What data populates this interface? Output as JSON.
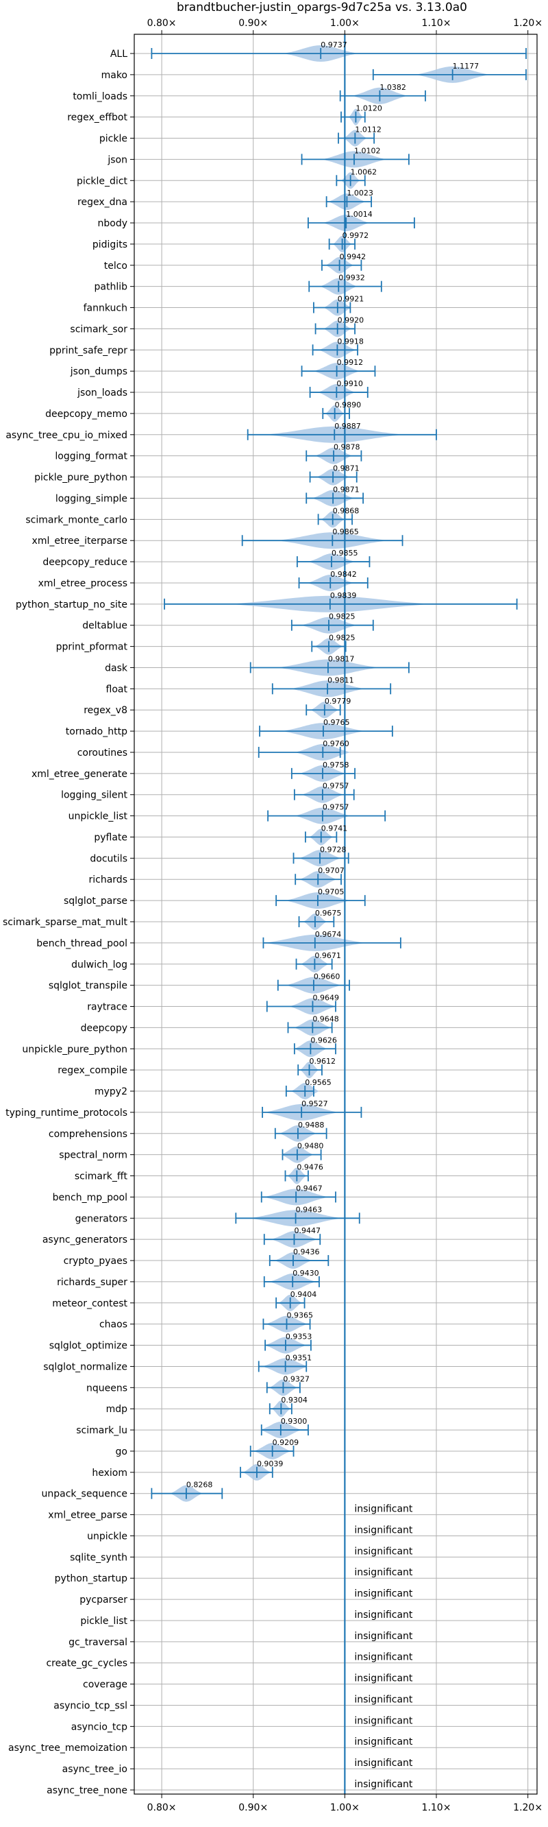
{
  "chart_data": {
    "type": "violin",
    "title": "brandtbucher-justin_opargs-9d7c25a vs. 3.13.0a0",
    "xlabel": "",
    "ylabel": "",
    "xlim": [
      0.77,
      1.21
    ],
    "x_ticks": [
      0.8,
      0.9,
      1.0,
      1.1,
      1.2
    ],
    "x_tick_labels": [
      "0.80×",
      "0.90×",
      "1.00×",
      "1.10×",
      "1.20×"
    ],
    "reference_line": 1.0,
    "grid": true,
    "colors": {
      "violin": "#aac8e6",
      "marker": "#1f77b4",
      "grid": "#b0b0b0"
    },
    "benchmarks": [
      {
        "name": "ALL",
        "label": "0.9737",
        "mean": 0.9737,
        "min": 0.789,
        "max": 1.198,
        "bw": 0.08
      },
      {
        "name": "mako",
        "label": "1.1177",
        "mean": 1.1177,
        "min": 1.031,
        "max": 1.198,
        "bw": 0.08
      },
      {
        "name": "tomli_loads",
        "label": "1.0382",
        "mean": 1.0382,
        "min": 0.995,
        "max": 1.088,
        "bw": 0.06
      },
      {
        "name": "regex_effbot",
        "label": "1.0120",
        "mean": 1.012,
        "min": 0.996,
        "max": 1.022,
        "bw": 0.015
      },
      {
        "name": "pickle",
        "label": "1.0112",
        "mean": 1.0112,
        "min": 0.993,
        "max": 1.032,
        "bw": 0.025
      },
      {
        "name": "json",
        "label": "1.0102",
        "mean": 1.0102,
        "min": 0.953,
        "max": 1.07,
        "bw": 0.07
      },
      {
        "name": "pickle_dict",
        "label": "1.0062",
        "mean": 1.0062,
        "min": 0.991,
        "max": 1.022,
        "bw": 0.02
      },
      {
        "name": "regex_dna",
        "label": "1.0023",
        "mean": 1.0023,
        "min": 0.98,
        "max": 1.029,
        "bw": 0.04
      },
      {
        "name": "nbody",
        "label": "1.0014",
        "mean": 1.0014,
        "min": 0.96,
        "max": 1.076,
        "bw": 0.05
      },
      {
        "name": "pidigits",
        "label": "0.9972",
        "mean": 0.9972,
        "min": 0.983,
        "max": 1.011,
        "bw": 0.02
      },
      {
        "name": "telco",
        "label": "0.9942",
        "mean": 0.9942,
        "min": 0.975,
        "max": 1.018,
        "bw": 0.03
      },
      {
        "name": "pathlib",
        "label": "0.9932",
        "mean": 0.9932,
        "min": 0.961,
        "max": 1.04,
        "bw": 0.04
      },
      {
        "name": "fannkuch",
        "label": "0.9921",
        "mean": 0.9921,
        "min": 0.966,
        "max": 1.006,
        "bw": 0.03
      },
      {
        "name": "scimark_sor",
        "label": "0.9920",
        "mean": 0.992,
        "min": 0.968,
        "max": 1.011,
        "bw": 0.03
      },
      {
        "name": "pprint_safe_repr",
        "label": "0.9918",
        "mean": 0.9918,
        "min": 0.965,
        "max": 1.014,
        "bw": 0.04
      },
      {
        "name": "json_dumps",
        "label": "0.9912",
        "mean": 0.9912,
        "min": 0.953,
        "max": 1.033,
        "bw": 0.05
      },
      {
        "name": "json_loads",
        "label": "0.9910",
        "mean": 0.991,
        "min": 0.962,
        "max": 1.025,
        "bw": 0.04
      },
      {
        "name": "deepcopy_memo",
        "label": "0.9890",
        "mean": 0.989,
        "min": 0.976,
        "max": 1.005,
        "bw": 0.02
      },
      {
        "name": "async_tree_cpu_io_mixed",
        "label": "0.9887",
        "mean": 0.9887,
        "min": 0.894,
        "max": 1.1,
        "bw": 0.15
      },
      {
        "name": "logging_format",
        "label": "0.9878",
        "mean": 0.9878,
        "min": 0.958,
        "max": 1.018,
        "bw": 0.04
      },
      {
        "name": "pickle_pure_python",
        "label": "0.9871",
        "mean": 0.9871,
        "min": 0.962,
        "max": 1.013,
        "bw": 0.035
      },
      {
        "name": "logging_simple",
        "label": "0.9871",
        "mean": 0.9871,
        "min": 0.958,
        "max": 1.02,
        "bw": 0.045
      },
      {
        "name": "scimark_monte_carlo",
        "label": "0.9868",
        "mean": 0.9868,
        "min": 0.971,
        "max": 1.008,
        "bw": 0.025
      },
      {
        "name": "xml_etree_iterparse",
        "label": "0.9865",
        "mean": 0.9865,
        "min": 0.888,
        "max": 1.063,
        "bw": 0.12
      },
      {
        "name": "deepcopy_reduce",
        "label": "0.9855",
        "mean": 0.9855,
        "min": 0.948,
        "max": 1.027,
        "bw": 0.05
      },
      {
        "name": "xml_etree_process",
        "label": "0.9842",
        "mean": 0.9842,
        "min": 0.95,
        "max": 1.025,
        "bw": 0.05
      },
      {
        "name": "python_startup_no_site",
        "label": "0.9839",
        "mean": 0.9839,
        "min": 0.803,
        "max": 1.188,
        "bw": 0.22
      },
      {
        "name": "deltablue",
        "label": "0.9825",
        "mean": 0.9825,
        "min": 0.942,
        "max": 1.031,
        "bw": 0.06
      },
      {
        "name": "pprint_pformat",
        "label": "0.9825",
        "mean": 0.9825,
        "min": 0.964,
        "max": 1.001,
        "bw": 0.03
      },
      {
        "name": "dask",
        "label": "0.9817",
        "mean": 0.9817,
        "min": 0.897,
        "max": 1.07,
        "bw": 0.11
      },
      {
        "name": "float",
        "label": "0.9811",
        "mean": 0.9811,
        "min": 0.921,
        "max": 1.05,
        "bw": 0.08
      },
      {
        "name": "regex_v8",
        "label": "0.9779",
        "mean": 0.9779,
        "min": 0.958,
        "max": 0.995,
        "bw": 0.03
      },
      {
        "name": "tornado_http",
        "label": "0.9765",
        "mean": 0.9765,
        "min": 0.907,
        "max": 1.052,
        "bw": 0.09
      },
      {
        "name": "coroutines",
        "label": "0.9760",
        "mean": 0.976,
        "min": 0.906,
        "max": 0.995,
        "bw": 0.06
      },
      {
        "name": "xml_etree_generate",
        "label": "0.9758",
        "mean": 0.9758,
        "min": 0.942,
        "max": 1.011,
        "bw": 0.05
      },
      {
        "name": "logging_silent",
        "label": "0.9757",
        "mean": 0.9757,
        "min": 0.945,
        "max": 1.01,
        "bw": 0.045
      },
      {
        "name": "unpickle_list",
        "label": "0.9757",
        "mean": 0.9757,
        "min": 0.916,
        "max": 1.044,
        "bw": 0.06
      },
      {
        "name": "pyflate",
        "label": "0.9741",
        "mean": 0.9741,
        "min": 0.957,
        "max": 0.991,
        "bw": 0.025
      },
      {
        "name": "docutils",
        "label": "0.9728",
        "mean": 0.9728,
        "min": 0.944,
        "max": 1.004,
        "bw": 0.045
      },
      {
        "name": "richards",
        "label": "0.9707",
        "mean": 0.9707,
        "min": 0.946,
        "max": 0.996,
        "bw": 0.04
      },
      {
        "name": "sqlglot_parse",
        "label": "0.9705",
        "mean": 0.9705,
        "min": 0.925,
        "max": 1.022,
        "bw": 0.07
      },
      {
        "name": "scimark_sparse_mat_mult",
        "label": "0.9675",
        "mean": 0.9675,
        "min": 0.95,
        "max": 0.988,
        "bw": 0.025
      },
      {
        "name": "bench_thread_pool",
        "label": "0.9674",
        "mean": 0.9674,
        "min": 0.911,
        "max": 1.061,
        "bw": 0.11
      },
      {
        "name": "dulwich_log",
        "label": "0.9671",
        "mean": 0.9671,
        "min": 0.947,
        "max": 0.986,
        "bw": 0.03
      },
      {
        "name": "sqlglot_transpile",
        "label": "0.9660",
        "mean": 0.966,
        "min": 0.927,
        "max": 1.005,
        "bw": 0.06
      },
      {
        "name": "raytrace",
        "label": "0.9649",
        "mean": 0.9649,
        "min": 0.915,
        "max": 0.99,
        "bw": 0.05
      },
      {
        "name": "deepcopy",
        "label": "0.9648",
        "mean": 0.9648,
        "min": 0.938,
        "max": 0.986,
        "bw": 0.04
      },
      {
        "name": "unpickle_pure_python",
        "label": "0.9626",
        "mean": 0.9626,
        "min": 0.945,
        "max": 0.99,
        "bw": 0.035
      },
      {
        "name": "regex_compile",
        "label": "0.9612",
        "mean": 0.9612,
        "min": 0.949,
        "max": 0.975,
        "bw": 0.02
      },
      {
        "name": "mypy2",
        "label": "0.9565",
        "mean": 0.9565,
        "min": 0.936,
        "max": 0.966,
        "bw": 0.03
      },
      {
        "name": "typing_runtime_protocols",
        "label": "0.9527",
        "mean": 0.9527,
        "min": 0.91,
        "max": 1.018,
        "bw": 0.08
      },
      {
        "name": "comprehensions",
        "label": "0.9488",
        "mean": 0.9488,
        "min": 0.924,
        "max": 0.98,
        "bw": 0.04
      },
      {
        "name": "spectral_norm",
        "label": "0.9480",
        "mean": 0.948,
        "min": 0.932,
        "max": 0.974,
        "bw": 0.035
      },
      {
        "name": "scimark_fft",
        "label": "0.9476",
        "mean": 0.9476,
        "min": 0.935,
        "max": 0.96,
        "bw": 0.02
      },
      {
        "name": "bench_mp_pool",
        "label": "0.9467",
        "mean": 0.9467,
        "min": 0.909,
        "max": 0.99,
        "bw": 0.07
      },
      {
        "name": "generators",
        "label": "0.9463",
        "mean": 0.9463,
        "min": 0.881,
        "max": 1.016,
        "bw": 0.1
      },
      {
        "name": "async_generators",
        "label": "0.9447",
        "mean": 0.9447,
        "min": 0.912,
        "max": 0.973,
        "bw": 0.05
      },
      {
        "name": "crypto_pyaes",
        "label": "0.9436",
        "mean": 0.9436,
        "min": 0.918,
        "max": 0.982,
        "bw": 0.04
      },
      {
        "name": "richards_super",
        "label": "0.9430",
        "mean": 0.943,
        "min": 0.912,
        "max": 0.972,
        "bw": 0.05
      },
      {
        "name": "meteor_contest",
        "label": "0.9404",
        "mean": 0.9404,
        "min": 0.925,
        "max": 0.956,
        "bw": 0.025
      },
      {
        "name": "chaos",
        "label": "0.9365",
        "mean": 0.9365,
        "min": 0.911,
        "max": 0.962,
        "bw": 0.045
      },
      {
        "name": "sqlglot_optimize",
        "label": "0.9353",
        "mean": 0.9353,
        "min": 0.913,
        "max": 0.963,
        "bw": 0.045
      },
      {
        "name": "sqlglot_normalize",
        "label": "0.9351",
        "mean": 0.9351,
        "min": 0.906,
        "max": 0.958,
        "bw": 0.05
      },
      {
        "name": "nqueens",
        "label": "0.9327",
        "mean": 0.9327,
        "min": 0.915,
        "max": 0.951,
        "bw": 0.03
      },
      {
        "name": "mdp",
        "label": "0.9304",
        "mean": 0.9304,
        "min": 0.918,
        "max": 0.942,
        "bw": 0.02
      },
      {
        "name": "scimark_lu",
        "label": "0.9300",
        "mean": 0.93,
        "min": 0.909,
        "max": 0.96,
        "bw": 0.045
      },
      {
        "name": "go",
        "label": "0.9209",
        "mean": 0.9209,
        "min": 0.897,
        "max": 0.944,
        "bw": 0.04
      },
      {
        "name": "hexiom",
        "label": "0.9039",
        "mean": 0.9039,
        "min": 0.886,
        "max": 0.921,
        "bw": 0.03
      },
      {
        "name": "unpack_sequence",
        "label": "0.8268",
        "mean": 0.8268,
        "min": 0.789,
        "max": 0.866,
        "bw": 0.035
      },
      {
        "name": "xml_etree_parse",
        "label": "insignificant"
      },
      {
        "name": "unpickle",
        "label": "insignificant"
      },
      {
        "name": "sqlite_synth",
        "label": "insignificant"
      },
      {
        "name": "python_startup",
        "label": "insignificant"
      },
      {
        "name": "pycparser",
        "label": "insignificant"
      },
      {
        "name": "pickle_list",
        "label": "insignificant"
      },
      {
        "name": "gc_traversal",
        "label": "insignificant"
      },
      {
        "name": "create_gc_cycles",
        "label": "insignificant"
      },
      {
        "name": "coverage",
        "label": "insignificant"
      },
      {
        "name": "asyncio_tcp_ssl",
        "label": "insignificant"
      },
      {
        "name": "asyncio_tcp",
        "label": "insignificant"
      },
      {
        "name": "async_tree_memoization",
        "label": "insignificant"
      },
      {
        "name": "async_tree_io",
        "label": "insignificant"
      },
      {
        "name": "async_tree_none",
        "label": "insignificant"
      }
    ]
  }
}
